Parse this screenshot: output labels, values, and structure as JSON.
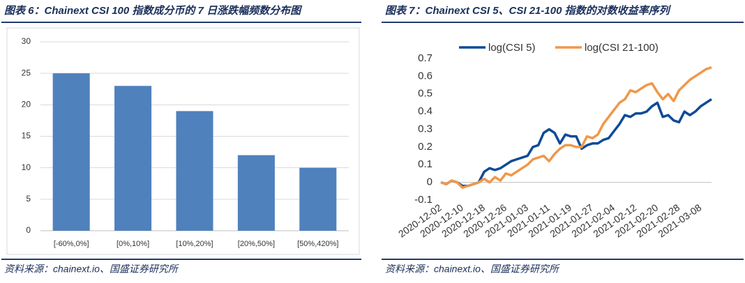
{
  "chart_data": [
    {
      "type": "bar",
      "title": "图表 6：Chainext CSI 100 指数成分币的 7 日涨跌幅频数分布图",
      "source": "资料来源：chainext.io、国盛证券研究所",
      "categories": [
        "[-60%,0%]",
        "[0%,10%]",
        "[10%,20%]",
        "[20%,50%]",
        "[50%,420%]"
      ],
      "values": [
        25,
        23,
        19,
        12,
        10
      ],
      "color": "#4f81bd",
      "ylim": [
        0,
        30
      ],
      "yticks": [
        0,
        5,
        10,
        15,
        20,
        25,
        30
      ],
      "grid": true
    },
    {
      "type": "line",
      "title": "图表 7：Chainext CSI 5、CSI 21-100 指数的对数收益率序列",
      "source": "资料来源：chainext.io、国盛证券研究所",
      "x": [
        "2020-12-02",
        "2020-12-04",
        "2020-12-06",
        "2020-12-08",
        "2020-12-10",
        "2020-12-12",
        "2020-12-14",
        "2020-12-16",
        "2020-12-18",
        "2020-12-20",
        "2020-12-22",
        "2020-12-24",
        "2020-12-26",
        "2020-12-28",
        "2020-12-30",
        "2021-01-01",
        "2021-01-03",
        "2021-01-05",
        "2021-01-07",
        "2021-01-09",
        "2021-01-11",
        "2021-01-13",
        "2021-01-15",
        "2021-01-17",
        "2021-01-19",
        "2021-01-21",
        "2021-01-23",
        "2021-01-25",
        "2021-01-27",
        "2021-01-29",
        "2021-01-31",
        "2021-02-02",
        "2021-02-04",
        "2021-02-06",
        "2021-02-08",
        "2021-02-10",
        "2021-02-12",
        "2021-02-14",
        "2021-02-16",
        "2021-02-18",
        "2021-02-20",
        "2021-02-22",
        "2021-02-24",
        "2021-02-26",
        "2021-02-28",
        "2021-03-02",
        "2021-03-04",
        "2021-03-06",
        "2021-03-08",
        "2021-03-10",
        "2021-03-12"
      ],
      "xticks": [
        "2020-12-02",
        "2020-12-10",
        "2020-12-18",
        "2020-12-26",
        "2021-01-03",
        "2021-01-11",
        "2021-01-19",
        "2021-01-27",
        "2021-02-04",
        "2021-02-12",
        "2021-02-20",
        "2021-02-28",
        "2021-03-08"
      ],
      "series": [
        {
          "name": "log(CSI 5)",
          "color": "#0e4a97",
          "values": [
            0.0,
            -0.01,
            0.01,
            0.0,
            -0.02,
            -0.02,
            -0.01,
            0.0,
            0.06,
            0.08,
            0.07,
            0.08,
            0.1,
            0.12,
            0.13,
            0.14,
            0.15,
            0.2,
            0.21,
            0.28,
            0.3,
            0.28,
            0.22,
            0.27,
            0.26,
            0.26,
            0.19,
            0.21,
            0.22,
            0.22,
            0.24,
            0.25,
            0.29,
            0.33,
            0.38,
            0.37,
            0.39,
            0.39,
            0.4,
            0.43,
            0.45,
            0.37,
            0.38,
            0.35,
            0.34,
            0.4,
            0.38,
            0.4,
            0.43,
            0.45,
            0.47
          ]
        },
        {
          "name": "log(CSI 21-100)",
          "color": "#f0974a",
          "values": [
            0.0,
            -0.01,
            0.01,
            0.0,
            -0.03,
            -0.02,
            -0.01,
            0.0,
            0.02,
            0.0,
            0.03,
            0.01,
            0.05,
            0.04,
            0.06,
            0.08,
            0.1,
            0.13,
            0.14,
            0.15,
            0.12,
            0.16,
            0.19,
            0.21,
            0.21,
            0.2,
            0.2,
            0.26,
            0.25,
            0.27,
            0.33,
            0.37,
            0.41,
            0.45,
            0.47,
            0.52,
            0.51,
            0.53,
            0.55,
            0.56,
            0.51,
            0.47,
            0.5,
            0.46,
            0.52,
            0.55,
            0.58,
            0.6,
            0.62,
            0.64,
            0.65
          ]
        }
      ],
      "ylim": [
        -0.1,
        0.7
      ],
      "yticks": [
        -0.1,
        0,
        0.1,
        0.2,
        0.3,
        0.4,
        0.5,
        0.6,
        0.7
      ],
      "grid": false
    }
  ]
}
